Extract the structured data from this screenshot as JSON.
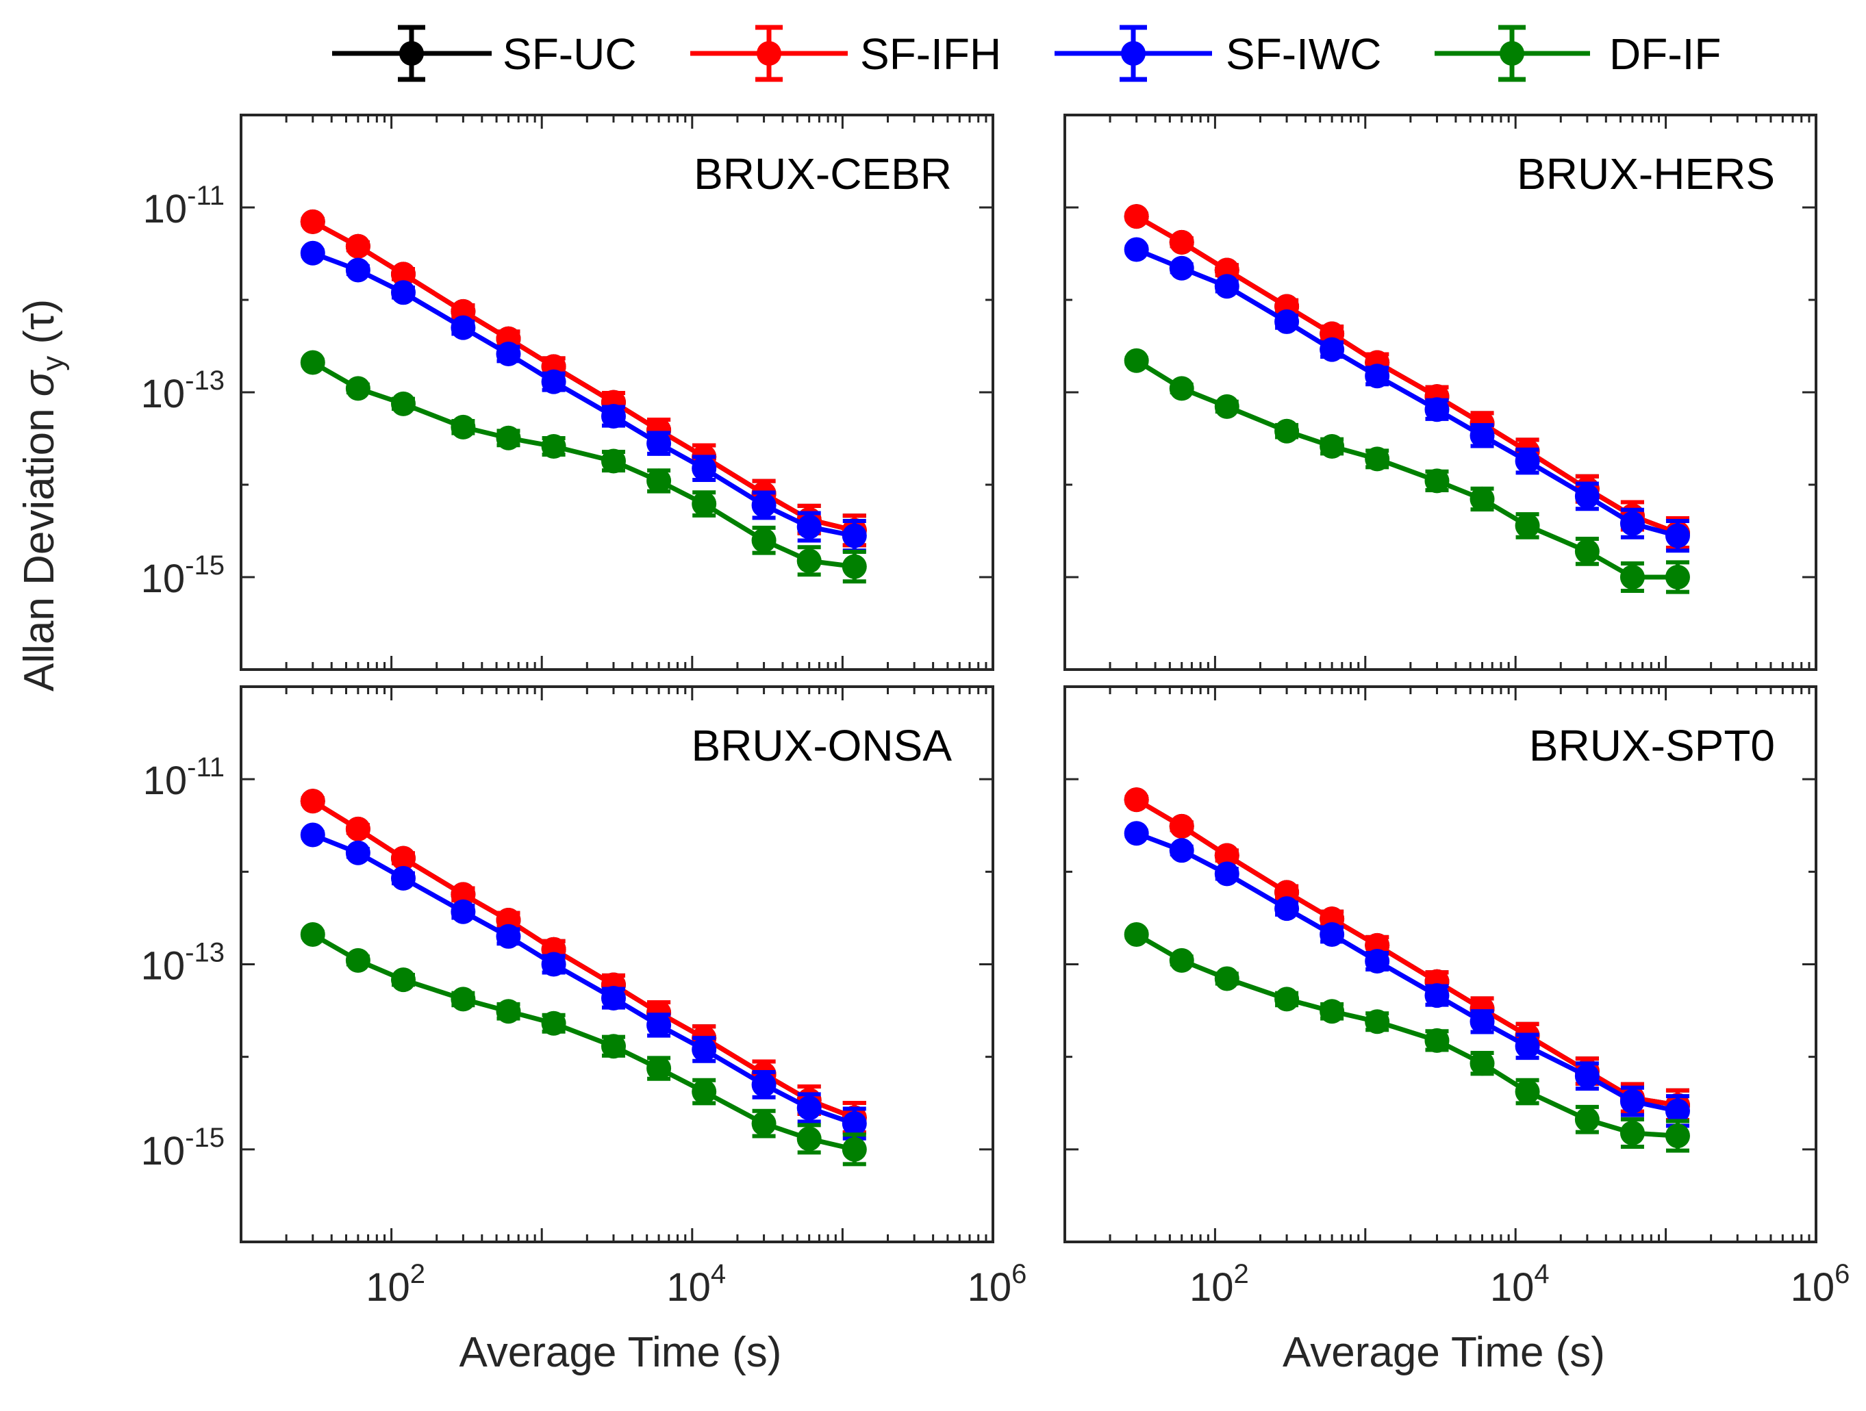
{
  "legend": [
    {
      "name": "SF-UC",
      "color": "#000000"
    },
    {
      "name": "SF-IFH",
      "color": "#ff0000"
    },
    {
      "name": "SF-IWC",
      "color": "#0000ff"
    },
    {
      "name": "DF-IF",
      "color": "#008000"
    }
  ],
  "axes": {
    "xlabel": "Average Time (s)",
    "ylabel_main": "Allan Deviation",
    "ylabel_sigma": "σ",
    "ylabel_sub": "y",
    "ylabel_arg": "(τ)",
    "x_ticks": [
      {
        "base": "10",
        "exp": "2",
        "value": 100
      },
      {
        "base": "10",
        "exp": "4",
        "value": 10000
      },
      {
        "base": "10",
        "exp": "6",
        "value": 1000000
      }
    ],
    "y_ticks": [
      {
        "base": "10",
        "exp": "-11",
        "value": 1e-11
      },
      {
        "base": "10",
        "exp": "-13",
        "value": 1e-13
      },
      {
        "base": "10",
        "exp": "-15",
        "value": 1e-15
      }
    ]
  },
  "chart_data": [
    {
      "type": "line",
      "title": "BRUX-CEBR",
      "xscale": "log",
      "yscale": "log",
      "xlim": [
        10,
        1000000
      ],
      "ylim": [
        1e-16,
        1e-10
      ],
      "x": [
        30,
        60,
        120,
        300,
        600,
        1200,
        3000,
        6000,
        12000,
        30000,
        60000,
        120000
      ],
      "series": [
        {
          "name": "SF-UC",
          "values": [
            7e-12,
            3.8e-12,
            1.9e-12,
            7.5e-13,
            3.8e-13,
            1.9e-13,
            7.8e-14,
            3.9e-14,
            2e-14,
            8e-15,
            4.2e-15,
            3.2e-15
          ]
        },
        {
          "name": "SF-IFH",
          "values": [
            7e-12,
            3.8e-12,
            1.9e-12,
            7.5e-13,
            3.8e-13,
            1.9e-13,
            7.8e-14,
            3.9e-14,
            2e-14,
            8e-15,
            4.2e-15,
            3.2e-15
          ]
        },
        {
          "name": "SF-IWC",
          "values": [
            3.2e-12,
            2.1e-12,
            1.2e-12,
            5e-13,
            2.6e-13,
            1.3e-13,
            5.5e-14,
            2.8e-14,
            1.5e-14,
            6e-15,
            3.5e-15,
            2.8e-15
          ]
        },
        {
          "name": "DF-IF",
          "values": [
            2.1e-13,
            1.1e-13,
            7.5e-14,
            4.2e-14,
            3.2e-14,
            2.6e-14,
            1.8e-14,
            1.1e-14,
            6.2e-15,
            2.5e-15,
            1.5e-15,
            1.3e-15
          ]
        }
      ]
    },
    {
      "type": "line",
      "title": "BRUX-HERS",
      "xscale": "log",
      "yscale": "log",
      "xlim": [
        10,
        1000000
      ],
      "ylim": [
        1e-16,
        1e-10
      ],
      "x": [
        30,
        60,
        120,
        300,
        600,
        1200,
        3000,
        6000,
        12000,
        30000,
        60000,
        120000
      ],
      "series": [
        {
          "name": "SF-UC",
          "values": [
            8e-12,
            4.2e-12,
            2.1e-12,
            8.5e-13,
            4.3e-13,
            2.1e-13,
            9e-14,
            4.6e-14,
            2.3e-14,
            9e-15,
            4.6e-15,
            3e-15
          ]
        },
        {
          "name": "SF-IFH",
          "values": [
            8e-12,
            4.2e-12,
            2.1e-12,
            8.5e-13,
            4.3e-13,
            2.1e-13,
            9e-14,
            4.6e-14,
            2.3e-14,
            9e-15,
            4.6e-15,
            3e-15
          ]
        },
        {
          "name": "SF-IWC",
          "values": [
            3.5e-12,
            2.2e-12,
            1.4e-12,
            5.8e-13,
            2.9e-13,
            1.5e-13,
            6.5e-14,
            3.4e-14,
            1.8e-14,
            7.5e-15,
            3.8e-15,
            2.8e-15
          ]
        },
        {
          "name": "DF-IF",
          "values": [
            2.2e-13,
            1.1e-13,
            7e-14,
            3.8e-14,
            2.6e-14,
            1.9e-14,
            1.1e-14,
            7e-15,
            3.6e-15,
            1.9e-15,
            1e-15,
            1e-15
          ]
        }
      ]
    },
    {
      "type": "line",
      "title": "BRUX-ONSA",
      "xscale": "log",
      "yscale": "log",
      "xlim": [
        10,
        1000000
      ],
      "ylim": [
        1e-16,
        1e-10
      ],
      "x": [
        30,
        60,
        120,
        300,
        600,
        1200,
        3000,
        6000,
        12000,
        30000,
        60000,
        120000
      ],
      "series": [
        {
          "name": "SF-UC",
          "values": [
            5.8e-12,
            2.9e-12,
            1.4e-12,
            5.7e-13,
            3e-13,
            1.45e-13,
            6e-14,
            3e-14,
            1.6e-14,
            6.5e-15,
            3.4e-15,
            2.2e-15
          ]
        },
        {
          "name": "SF-IFH",
          "values": [
            5.8e-12,
            2.9e-12,
            1.4e-12,
            5.7e-13,
            3e-13,
            1.45e-13,
            6e-14,
            3e-14,
            1.6e-14,
            6.5e-15,
            3.4e-15,
            2.2e-15
          ]
        },
        {
          "name": "SF-IWC",
          "values": [
            2.5e-12,
            1.6e-12,
            8.5e-13,
            3.7e-13,
            2e-13,
            1e-13,
            4.3e-14,
            2.2e-14,
            1.2e-14,
            5e-15,
            2.8e-15,
            1.9e-15
          ]
        },
        {
          "name": "DF-IF",
          "values": [
            2.1e-13,
            1.1e-13,
            6.8e-14,
            4.2e-14,
            3.1e-14,
            2.3e-14,
            1.3e-14,
            7.5e-15,
            4.2e-15,
            1.9e-15,
            1.3e-15,
            1e-15
          ]
        }
      ]
    },
    {
      "type": "line",
      "title": "BRUX-SPT0",
      "xscale": "log",
      "yscale": "log",
      "xlim": [
        10,
        1000000
      ],
      "ylim": [
        1e-16,
        1e-10
      ],
      "x": [
        30,
        60,
        120,
        300,
        600,
        1200,
        3000,
        6000,
        12000,
        30000,
        60000,
        120000
      ],
      "series": [
        {
          "name": "SF-UC",
          "values": [
            6e-12,
            3.1e-12,
            1.5e-12,
            6e-13,
            3.1e-13,
            1.6e-13,
            6.5e-14,
            3.3e-14,
            1.7e-14,
            7e-15,
            3.6e-15,
            3e-15
          ]
        },
        {
          "name": "SF-IFH",
          "values": [
            6e-12,
            3.1e-12,
            1.5e-12,
            6e-13,
            3.1e-13,
            1.6e-13,
            6.5e-14,
            3.3e-14,
            1.7e-14,
            7e-15,
            3.6e-15,
            3e-15
          ]
        },
        {
          "name": "SF-IWC",
          "values": [
            2.6e-12,
            1.7e-12,
            9.5e-13,
            4e-13,
            2.1e-13,
            1.08e-13,
            4.6e-14,
            2.4e-14,
            1.3e-14,
            6.2e-15,
            3.3e-15,
            2.6e-15
          ]
        },
        {
          "name": "DF-IF",
          "values": [
            2.1e-13,
            1.1e-13,
            7e-14,
            4.2e-14,
            3.1e-14,
            2.4e-14,
            1.5e-14,
            8.5e-15,
            4.2e-15,
            2.1e-15,
            1.5e-15,
            1.4e-15
          ]
        }
      ]
    }
  ]
}
